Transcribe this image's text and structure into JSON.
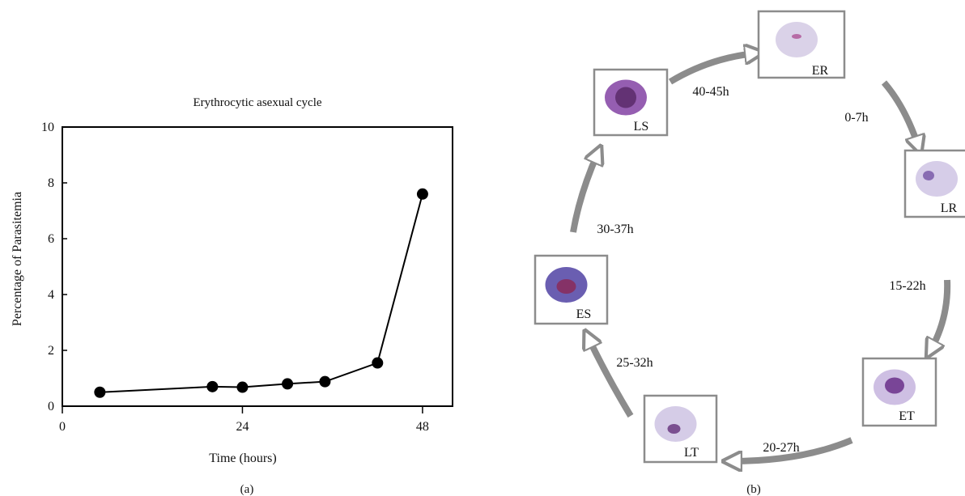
{
  "chart_data": {
    "type": "line",
    "title": "Erythrocytic asexual cycle",
    "xlabel": "Time (hours)",
    "ylabel": "Percentage of Parasitemia",
    "xlim": [
      0,
      52
    ],
    "ylim": [
      0,
      10
    ],
    "xticks": [
      0,
      24,
      48
    ],
    "yticks": [
      0,
      2,
      4,
      6,
      8,
      10
    ],
    "grid": false,
    "series": [
      {
        "x": [
          5,
          20,
          24,
          30,
          35,
          42,
          48
        ],
        "y": [
          0.5,
          0.7,
          0.68,
          0.8,
          0.88,
          1.55,
          7.6
        ]
      }
    ]
  },
  "panel_a_label": "(a)",
  "panel_b_label": "(b)",
  "cycle": {
    "stages": [
      {
        "id": "ER",
        "label": "ER",
        "colors": {
          "cell": "#d6cde6",
          "spot": "#b05a9a"
        }
      },
      {
        "id": "LR",
        "label": "LR",
        "colors": {
          "cell": "#d2c8e6",
          "spot": "#7a5aa8"
        }
      },
      {
        "id": "ET",
        "label": "ET",
        "colors": {
          "cell": "#c9b8e0",
          "spot": "#6a2f8a"
        }
      },
      {
        "id": "LT",
        "label": "LT",
        "colors": {
          "cell": "#d0c6e4",
          "spot": "#6a3880"
        }
      },
      {
        "id": "ES",
        "label": "ES",
        "colors": {
          "cell": "#5a4ca8",
          "spot": "#8a2a5a"
        }
      },
      {
        "id": "LS",
        "label": "LS",
        "colors": {
          "cell": "#8a4ca8",
          "spot": "#5a2a6a"
        }
      }
    ],
    "transitions": [
      "0-7h",
      "15-22h",
      "20-27h",
      "25-32h",
      "30-37h",
      "40-45h"
    ],
    "arrow_color": "#8c8c8c",
    "frame_color": "#8c8c8c"
  }
}
